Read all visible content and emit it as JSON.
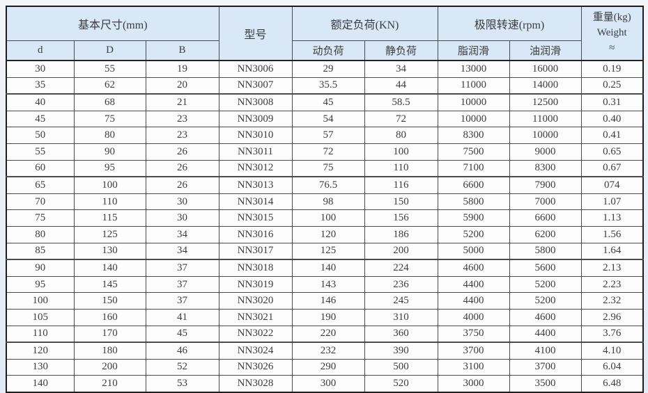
{
  "colors": {
    "header_bg": "#d8e8f6",
    "page_bg": "#e0eaf4",
    "border_dark": "#1c1c1c",
    "border_inner": "#4a4a4a",
    "text": "#3c3c3c"
  },
  "table": {
    "header": {
      "basic_dimensions": "基本尺寸(mm)",
      "model": "型号",
      "rated_load": "额定负荷(KN)",
      "limiting_speed": "极限转速(rpm)",
      "weight_line1": "重量(kg)",
      "weight_line2": "Weight",
      "weight_line3": "≈"
    },
    "subheader": [
      "d",
      "D",
      "B",
      "动负荷",
      "静负荷",
      "脂润滑",
      "油润滑"
    ],
    "rows": [
      [
        "30",
        "55",
        "19",
        "NN3006",
        "29",
        "34",
        "13000",
        "16000",
        "0.19"
      ],
      [
        "35",
        "62",
        "20",
        "NN3007",
        "35.5",
        "44",
        "11000",
        "14000",
        "0.25"
      ],
      [
        "40",
        "68",
        "21",
        "NN3008",
        "45",
        "58.5",
        "10000",
        "12500",
        "0.31"
      ],
      [
        "45",
        "75",
        "23",
        "NN3009",
        "54",
        "72",
        "10000",
        "11000",
        "0.40"
      ],
      [
        "50",
        "80",
        "23",
        "NN3010",
        "57",
        "80",
        "8300",
        "10000",
        "0.41"
      ],
      [
        "55",
        "90",
        "26",
        "NN3011",
        "72",
        "100",
        "7500",
        "9000",
        "0.65"
      ],
      [
        "60",
        "95",
        "26",
        "NN3012",
        "75",
        "110",
        "7100",
        "8300",
        "0.67"
      ],
      [
        "65",
        "100",
        "26",
        "NN3013",
        "76.5",
        "116",
        "6600",
        "7900",
        "074"
      ],
      [
        "70",
        "110",
        "30",
        "NN3014",
        "98",
        "150",
        "5800",
        "7000",
        "1.07"
      ],
      [
        "75",
        "115",
        "30",
        "NN3015",
        "100",
        "156",
        "5900",
        "6600",
        "1.13"
      ],
      [
        "80",
        "125",
        "34",
        "NN3016",
        "120",
        "186",
        "5200",
        "6200",
        "1.56"
      ],
      [
        "85",
        "130",
        "34",
        "NN3017",
        "125",
        "200",
        "5000",
        "5800",
        "1.64"
      ],
      [
        "90",
        "140",
        "37",
        "NN3018",
        "140",
        "224",
        "4600",
        "5600",
        "2.13"
      ],
      [
        "95",
        "145",
        "37",
        "NN3019",
        "143",
        "236",
        "4400",
        "5200",
        "2.23"
      ],
      [
        "100",
        "150",
        "37",
        "NN3020",
        "146",
        "245",
        "4400",
        "5200",
        "2.32"
      ],
      [
        "105",
        "160",
        "41",
        "NN3021",
        "190",
        "310",
        "4000",
        "4600",
        "2.96"
      ],
      [
        "110",
        "170",
        "45",
        "NN3022",
        "220",
        "360",
        "3750",
        "4400",
        "3.76"
      ],
      [
        "120",
        "180",
        "46",
        "NN3024",
        "232",
        "390",
        "3700",
        "4100",
        "4.10"
      ],
      [
        "130",
        "200",
        "52",
        "NN3026",
        "290",
        "500",
        "3100",
        "3700",
        "6.04"
      ],
      [
        "140",
        "210",
        "53",
        "NN3028",
        "300",
        "520",
        "3000",
        "3500",
        "6.48"
      ]
    ]
  }
}
